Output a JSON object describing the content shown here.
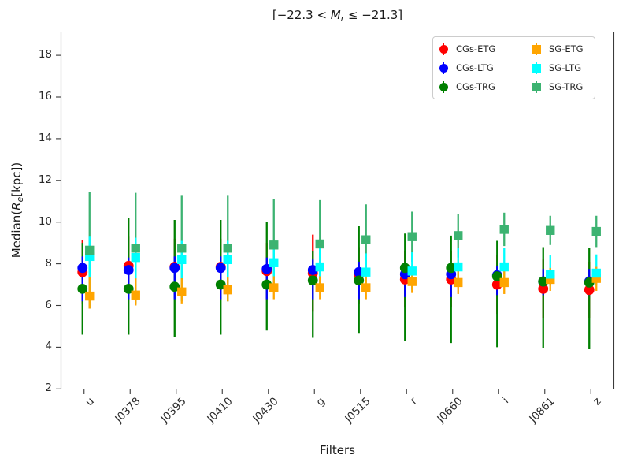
{
  "figure": {
    "title_parts": {
      "prefix": "[−22.3 < ",
      "var": "M",
      "sub": "r",
      "suffix": " ≤ −21.3]"
    },
    "ylabel_parts": {
      "prefix": "Median(",
      "var": "R",
      "sub": "e",
      "suffix": "[kpc])"
    },
    "xlabel": "Filters"
  },
  "chart_data": {
    "type": "scatter",
    "title": "[-22.3 < M_r <= -21.3]",
    "xlabel": "Filters",
    "ylabel": "Median(R_e[kpc])",
    "grid": false,
    "legend_position": "upper-right",
    "categories": [
      "u",
      "J0378",
      "J0395",
      "J0410",
      "J0430",
      "g",
      "J0515",
      "r",
      "J0660",
      "i",
      "J0861",
      "z"
    ],
    "yticks": [
      2,
      4,
      6,
      8,
      10,
      12,
      14,
      16,
      18
    ],
    "ylim": [
      2,
      19.14
    ],
    "series": [
      {
        "name": "CGs-ETG",
        "marker": "circle",
        "color": "#ff0000",
        "median": [
          7.6,
          7.9,
          7.85,
          7.85,
          7.65,
          7.55,
          7.45,
          7.25,
          7.25,
          7.0,
          6.8,
          6.75
        ],
        "err_lo": [
          6.1,
          6.5,
          6.5,
          6.5,
          6.3,
          5.7,
          6.1,
          5.9,
          5.9,
          5.6,
          5.4,
          5.4
        ],
        "err_hi": [
          9.15,
          9.3,
          9.2,
          9.2,
          9.0,
          9.4,
          8.8,
          8.6,
          8.6,
          8.4,
          8.2,
          8.1
        ]
      },
      {
        "name": "CGs-LTG",
        "marker": "circle",
        "color": "#0000ff",
        "median": [
          7.8,
          7.7,
          7.8,
          7.8,
          7.75,
          7.7,
          7.6,
          7.5,
          7.5,
          7.45,
          7.15,
          7.15
        ],
        "err_lo": [
          6.2,
          6.3,
          6.3,
          6.3,
          6.3,
          6.3,
          6.3,
          6.4,
          6.4,
          6.5,
          6.5,
          6.5
        ],
        "err_hi": [
          8.35,
          8.3,
          8.35,
          8.35,
          8.3,
          8.2,
          8.1,
          8.0,
          8.0,
          7.9,
          7.75,
          7.75
        ]
      },
      {
        "name": "CGs-TRG",
        "marker": "circle",
        "color": "#008000",
        "median": [
          6.8,
          6.8,
          6.9,
          7.0,
          7.0,
          7.2,
          7.2,
          7.8,
          7.8,
          7.4,
          7.15,
          7.1
        ],
        "err_lo": [
          4.6,
          4.6,
          4.5,
          4.6,
          4.8,
          4.45,
          4.65,
          4.3,
          4.2,
          4.0,
          3.95,
          3.9
        ],
        "err_hi": [
          9.0,
          10.2,
          10.1,
          10.1,
          10.0,
          8.6,
          9.8,
          9.45,
          9.35,
          9.1,
          8.8,
          8.75
        ]
      },
      {
        "name": "SG-ETG",
        "marker": "square",
        "color": "#ffa500",
        "median": [
          6.45,
          6.5,
          6.65,
          6.75,
          6.85,
          6.85,
          6.85,
          7.15,
          7.1,
          7.1,
          7.25,
          7.3
        ],
        "err_lo": [
          5.85,
          6.0,
          6.1,
          6.2,
          6.3,
          6.3,
          6.3,
          6.6,
          6.55,
          6.55,
          6.7,
          6.7
        ],
        "err_hi": [
          7.35,
          7.3,
          7.3,
          7.35,
          7.4,
          7.4,
          7.4,
          7.7,
          7.65,
          7.65,
          7.8,
          7.85
        ]
      },
      {
        "name": "SG-LTG",
        "marker": "square",
        "color": "#00ffff",
        "median": [
          8.35,
          8.3,
          8.2,
          8.2,
          8.05,
          7.85,
          7.6,
          7.65,
          7.85,
          7.85,
          7.5,
          7.55
        ],
        "err_lo": [
          7.3,
          7.25,
          7.3,
          7.3,
          7.1,
          6.9,
          6.7,
          6.75,
          6.95,
          6.95,
          6.95,
          7.0
        ],
        "err_hi": [
          9.3,
          9.25,
          9.1,
          9.1,
          9.0,
          8.8,
          8.5,
          8.55,
          8.75,
          8.75,
          8.4,
          8.45
        ]
      },
      {
        "name": "SG-TRG",
        "marker": "square",
        "color": "#3cb371",
        "median": [
          8.65,
          8.75,
          8.75,
          8.75,
          8.9,
          8.95,
          9.15,
          9.3,
          9.35,
          9.65,
          9.6,
          9.55
        ],
        "err_lo": [
          5.85,
          6.1,
          6.2,
          6.2,
          6.7,
          6.85,
          7.45,
          8.1,
          8.3,
          8.85,
          8.9,
          8.8
        ],
        "err_hi": [
          11.45,
          11.4,
          11.3,
          11.3,
          11.1,
          11.05,
          10.85,
          10.5,
          10.4,
          10.45,
          10.3,
          10.3
        ]
      }
    ]
  }
}
